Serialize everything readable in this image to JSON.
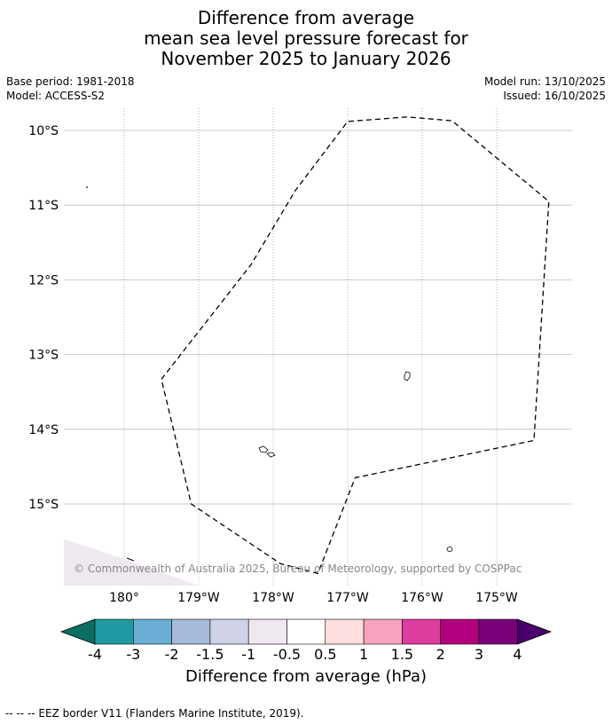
{
  "title": {
    "line1": "Difference from average",
    "line2": "mean sea level pressure forecast for",
    "line3": "November 2025 to January 2026"
  },
  "meta": {
    "base_period": "Base period: 1981-2018",
    "model": "Model: ACCESS-S2",
    "model_run": "Model run: 13/10/2025",
    "issued": "Issued: 16/10/2025"
  },
  "map": {
    "lat_labels": [
      "10°S",
      "11°S",
      "12°S",
      "13°S",
      "14°S",
      "15°S"
    ],
    "lon_labels": [
      "180°",
      "179°W",
      "178°W",
      "177°W",
      "176°W",
      "175°W"
    ],
    "copyright": "© Commonwealth of Australia 2025, Bureau of Meteorology, supported by COSPPac",
    "eez_outline": [
      [
        -179.5,
        -13.33
      ],
      [
        -178.3,
        -11.8
      ],
      [
        -177.7,
        -10.8
      ],
      [
        -177.0,
        -9.88
      ],
      [
        -176.2,
        -9.82
      ],
      [
        -175.6,
        -9.87
      ],
      [
        -174.3,
        -10.95
      ],
      [
        -174.5,
        -14.15
      ],
      [
        -176.9,
        -14.65
      ],
      [
        -177.4,
        -15.93
      ],
      [
        -177.9,
        -15.8
      ],
      [
        -179.1,
        -15.0
      ],
      [
        -179.5,
        -13.33
      ]
    ]
  },
  "colorbar": {
    "labels": [
      "-4",
      "-3",
      "-2",
      "-1.5",
      "-1",
      "-0.5",
      "0.5",
      "1",
      "1.5",
      "2",
      "3",
      "4"
    ],
    "colors": [
      "#0c6f63",
      "#1f9aa2",
      "#6aaed5",
      "#a6bad9",
      "#cfd2e6",
      "#efe8f1",
      "#ffffff",
      "#fddfdf",
      "#f7a3bf",
      "#de3c9f",
      "#b3007f",
      "#7a007a",
      "#49006a"
    ],
    "title": "Difference from average (hPa)"
  },
  "footer": {
    "legend": "--  --  -- EEZ border V11 (Flanders Marine Institute, 2019)."
  }
}
